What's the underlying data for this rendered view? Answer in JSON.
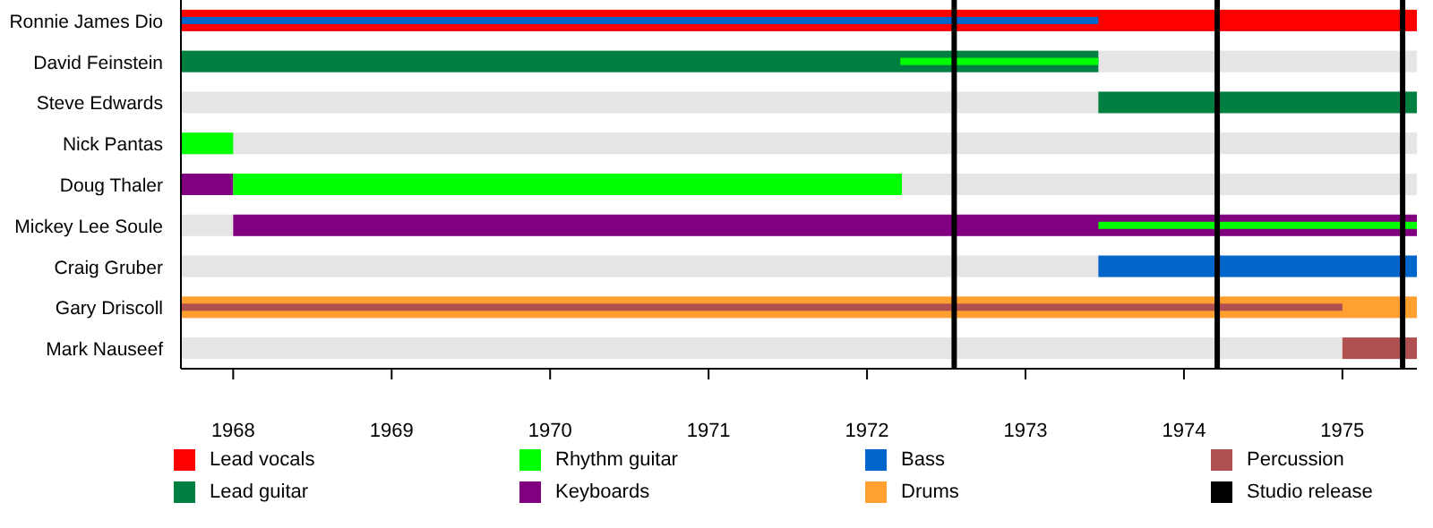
{
  "chart_data": {
    "type": "bar",
    "orientation": "horizontal",
    "legend": "bottom",
    "categories": [
      "Ronnie James Dio",
      "David Feinstein",
      "Steve Edwards",
      "Nick Pantas",
      "Doug Thaler",
      "Mickey Lee Soule",
      "Craig Gruber",
      "Gary Driscoll",
      "Mark Nauseef"
    ],
    "xlim": [
      1967.67,
      1975.47
    ],
    "xticks": [
      1968,
      1969,
      1970,
      1971,
      1972,
      1973,
      1974,
      1975
    ],
    "series": [
      {
        "name": "Lead vocals",
        "color": "#ff0000",
        "base": [
          1967.67,
          null,
          null,
          null,
          null,
          null,
          null,
          null,
          null
        ],
        "values": [
          7.8,
          null,
          null,
          null,
          null,
          null,
          null,
          null,
          null
        ]
      },
      {
        "name": "Lead guitar",
        "color": "#008040",
        "base": [
          null,
          1967.67,
          1973.46,
          null,
          null,
          null,
          null,
          null,
          null
        ],
        "values": [
          null,
          5.79,
          2.01,
          null,
          null,
          null,
          null,
          null,
          null
        ]
      },
      {
        "name": "Rhythm guitar",
        "color": "#00ff00",
        "base": [
          null,
          1972.21,
          null,
          1967.67,
          1968.0,
          1973.46,
          null,
          null,
          null
        ],
        "values": [
          null,
          1.25,
          null,
          0.33,
          4.22,
          2.01,
          null,
          null,
          null
        ]
      },
      {
        "name": "Keyboards",
        "color": "#800080",
        "base": [
          null,
          null,
          null,
          null,
          1967.67,
          1968.0,
          null,
          null,
          null
        ],
        "values": [
          null,
          null,
          null,
          null,
          0.33,
          7.47,
          null,
          null,
          null
        ]
      },
      {
        "name": "Bass",
        "color": "#0066cc",
        "base": [
          1967.67,
          null,
          null,
          null,
          null,
          null,
          1973.46,
          null,
          null
        ],
        "values": [
          5.79,
          null,
          null,
          null,
          null,
          null,
          2.01,
          null,
          null
        ]
      },
      {
        "name": "Drums",
        "color": "#ffa030",
        "base": [
          null,
          null,
          null,
          null,
          null,
          null,
          null,
          1967.67,
          null
        ],
        "values": [
          null,
          null,
          null,
          null,
          null,
          null,
          null,
          7.8,
          null
        ]
      },
      {
        "name": "Percussion",
        "color": "#b05050",
        "base": [
          null,
          null,
          null,
          null,
          null,
          null,
          null,
          1967.67,
          1975.0
        ],
        "values": [
          null,
          null,
          null,
          null,
          null,
          null,
          null,
          7.33,
          0.47
        ]
      }
    ],
    "ref_lines": [
      {
        "axis": "x",
        "value": 1972.55,
        "label": "Studio release",
        "color": "#000000"
      },
      {
        "axis": "x",
        "value": 1974.21,
        "color": "#000000"
      },
      {
        "axis": "x",
        "value": 1975.38,
        "color": "#000000"
      }
    ]
  }
}
